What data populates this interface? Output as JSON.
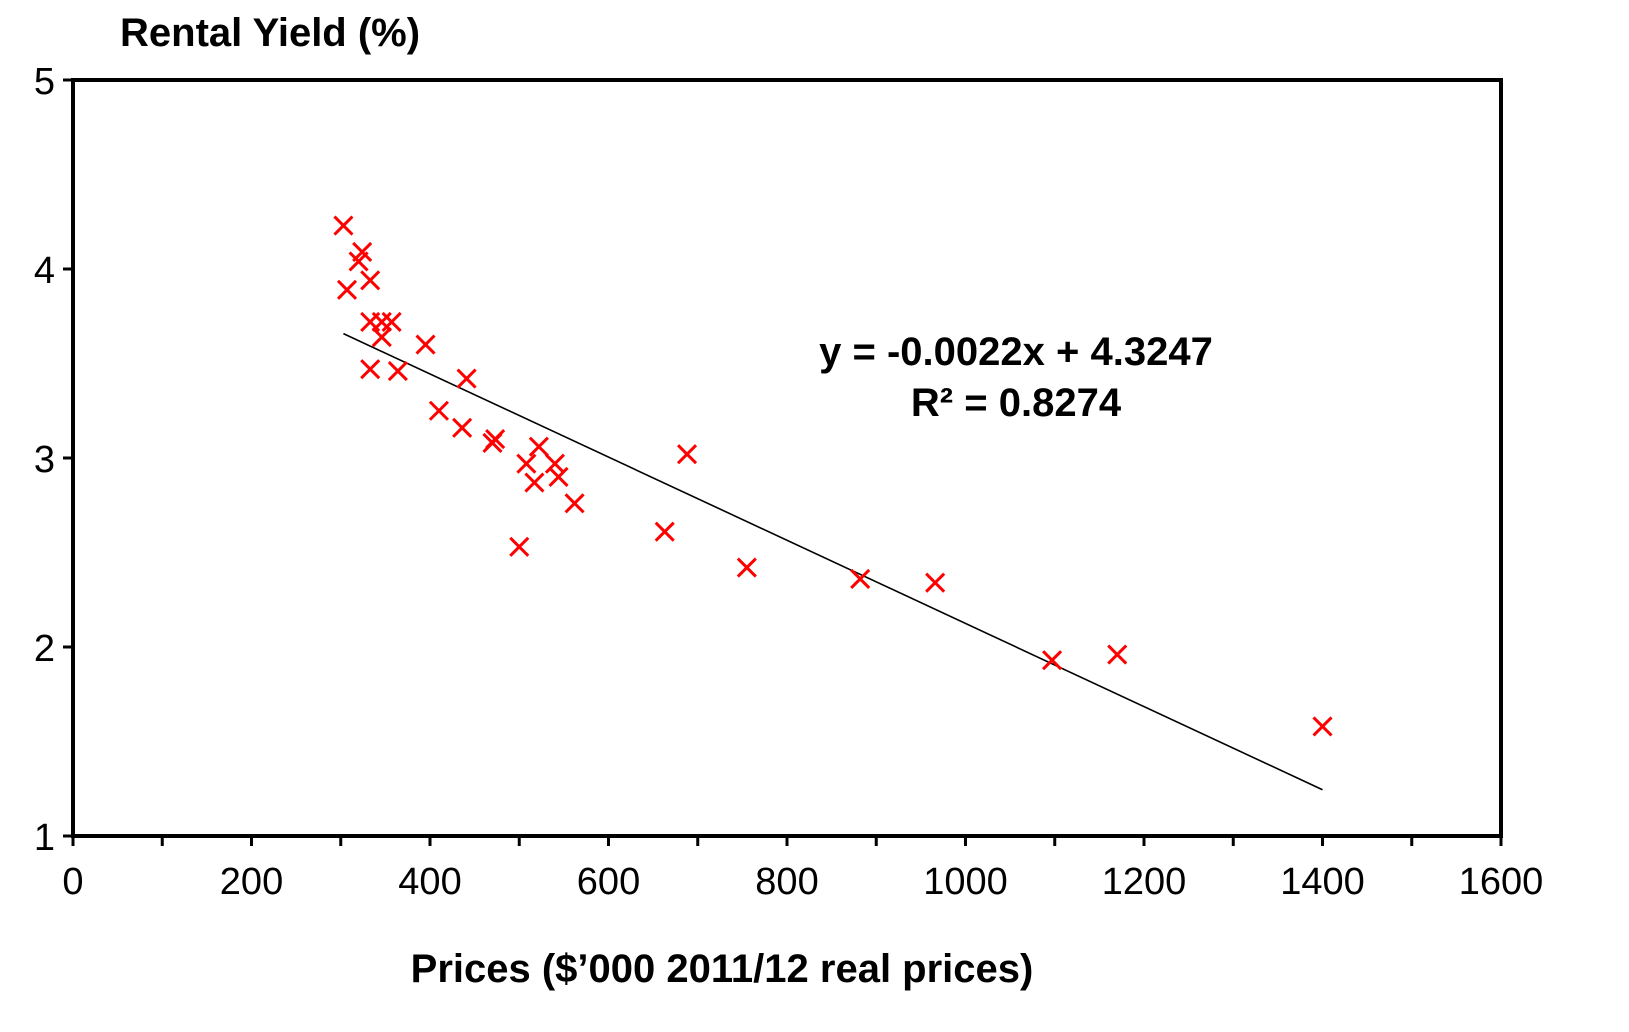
{
  "chart_data": {
    "type": "scatter",
    "ylabel": "Rental Yield (%)",
    "xlabel": "Prices ($’000 2011/12 real prices)",
    "xlim": [
      0,
      1600
    ],
    "ylim": [
      1,
      5
    ],
    "x_ticks": [
      "0",
      "200",
      "400",
      "600",
      "800",
      "1000",
      "1200",
      "1400",
      "1600"
    ],
    "y_ticks": [
      "1",
      "2",
      "3",
      "4",
      "5"
    ],
    "grid": false,
    "legend": "none",
    "marker_color": "#ff0000",
    "trendline_color": "#000000",
    "series": [
      {
        "marker": "x",
        "points": [
          [
            303,
            4.23
          ],
          [
            320,
            4.04
          ],
          [
            324,
            4.09
          ],
          [
            307,
            3.89
          ],
          [
            333,
            3.94
          ],
          [
            333,
            3.72
          ],
          [
            346,
            3.72
          ],
          [
            357,
            3.72
          ],
          [
            346,
            3.64
          ],
          [
            333,
            3.47
          ],
          [
            364,
            3.46
          ],
          [
            395,
            3.6
          ],
          [
            441,
            3.42
          ],
          [
            410,
            3.25
          ],
          [
            436,
            3.16
          ],
          [
            470,
            3.08
          ],
          [
            473,
            3.1
          ],
          [
            522,
            3.06
          ],
          [
            508,
            2.97
          ],
          [
            540,
            2.97
          ],
          [
            544,
            2.9
          ],
          [
            517,
            2.87
          ],
          [
            562,
            2.76
          ],
          [
            500,
            2.53
          ],
          [
            663,
            2.61
          ],
          [
            688,
            3.02
          ],
          [
            755,
            2.42
          ],
          [
            882,
            2.36
          ],
          [
            966,
            2.34
          ],
          [
            1097,
            1.93
          ],
          [
            1170,
            1.96
          ],
          [
            1400,
            1.58
          ]
        ]
      }
    ],
    "trendline": {
      "slope": -0.0022,
      "intercept": 4.3247,
      "x_range": [
        303,
        1400
      ]
    },
    "annotations": [
      "y = -0.0022x + 4.3247",
      "R² = 0.8274"
    ]
  }
}
